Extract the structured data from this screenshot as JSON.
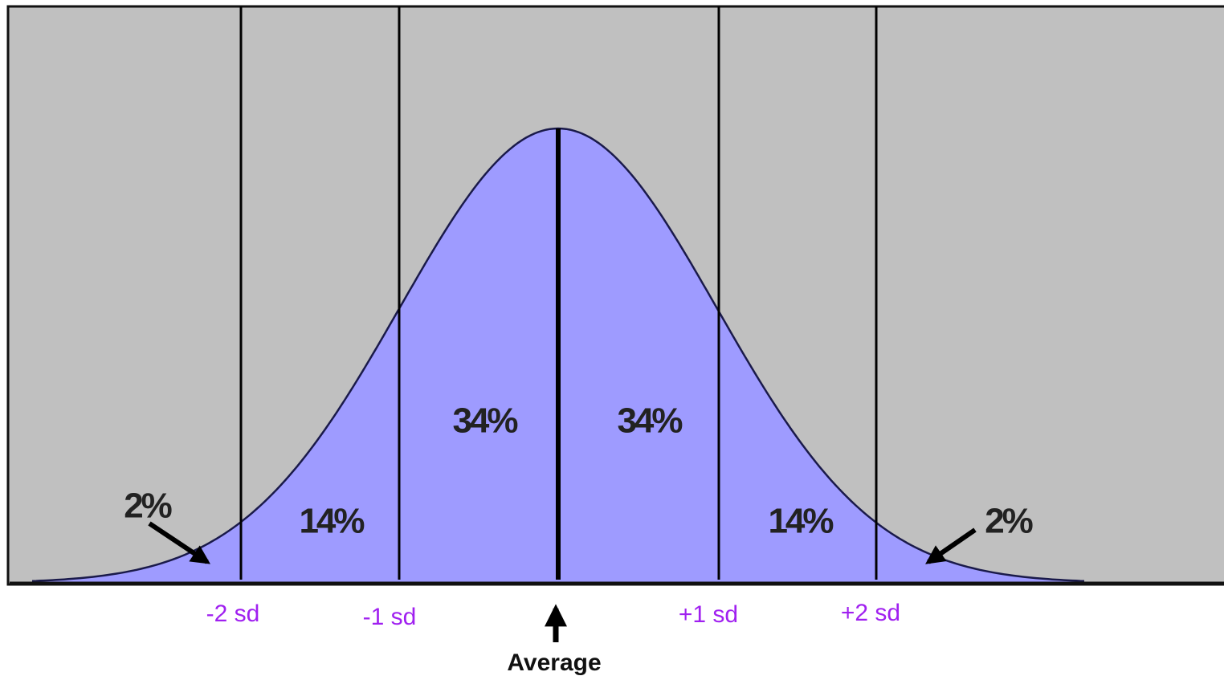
{
  "regions": [
    "2%",
    "14%",
    "34%",
    "34%",
    "14%",
    "2%"
  ],
  "sd_labels": [
    "-2 sd",
    "-1 sd",
    "+1 sd",
    "+2 sd"
  ],
  "average_label": "Average"
}
